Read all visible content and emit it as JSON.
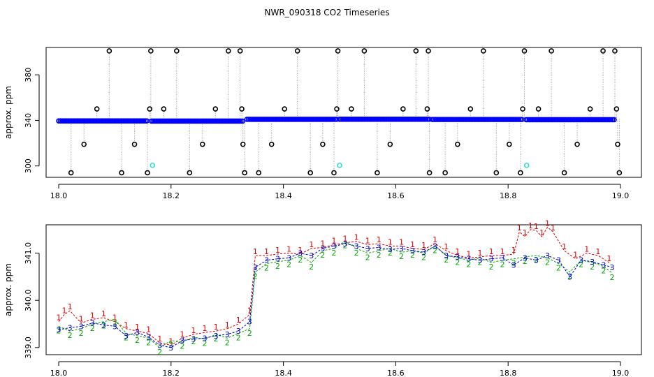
{
  "figure": {
    "title": "NWR_090318  CO2 Timeseries",
    "colors": {
      "frame": "#000000",
      "baseline_point": "#0000ff",
      "baseline_fill": "#3355dd",
      "std_point": "#000000",
      "std_alt": "#33dddd",
      "drop_line": "#9a9a9a",
      "series_1": "#dd0000",
      "series_2": "#00aa00",
      "series_3": "#0000cc"
    }
  },
  "chart_data": [
    {
      "type": "scatter",
      "title": "NWR_090318  CO2 Timeseries",
      "xlabel": "",
      "ylabel": "approx. ppm",
      "xlim": [
        18.0,
        19.0
      ],
      "ylim": [
        290,
        404
      ],
      "xticks": [
        18.0,
        18.2,
        18.4,
        18.6,
        18.8,
        19.0
      ],
      "xtick_labels": [
        "18.0",
        "18.2",
        "18.4",
        "18.6",
        "18.8",
        "19.0"
      ],
      "yticks": [
        300,
        340,
        380
      ],
      "ytick_labels": [
        "300",
        "340",
        "380"
      ],
      "grid": false,
      "series": [
        {
          "kind": "baseline",
          "segments": [
            {
              "x_start": 18.0,
              "x_end": 18.158,
              "y": 339.5
            },
            {
              "x_start": 18.165,
              "x_end": 18.328,
              "y": 339.4
            },
            {
              "x_start": 18.335,
              "x_end": 18.495,
              "y": 340.9
            },
            {
              "x_start": 18.5,
              "x_end": 18.66,
              "y": 341.0
            },
            {
              "x_start": 18.665,
              "x_end": 18.825,
              "y": 340.8
            },
            {
              "x_start": 18.832,
              "x_end": 18.99,
              "y": 340.6
            }
          ]
        },
        {
          "kind": "standards",
          "points": [
            {
              "x": 18.022,
              "y": 294
            },
            {
              "x": 18.045,
              "y": 319
            },
            {
              "x": 18.068,
              "y": 350
            },
            {
              "x": 18.09,
              "y": 401
            },
            {
              "x": 18.112,
              "y": 294
            },
            {
              "x": 18.135,
              "y": 319
            },
            {
              "x": 18.158,
              "y": 294
            },
            {
              "x": 18.162,
              "y": 350
            },
            {
              "x": 18.164,
              "y": 401
            },
            {
              "x": 18.187,
              "y": 350
            },
            {
              "x": 18.21,
              "y": 401
            },
            {
              "x": 18.233,
              "y": 294
            },
            {
              "x": 18.256,
              "y": 319
            },
            {
              "x": 18.279,
              "y": 350
            },
            {
              "x": 18.302,
              "y": 401
            },
            {
              "x": 18.323,
              "y": 401
            },
            {
              "x": 18.326,
              "y": 350
            },
            {
              "x": 18.328,
              "y": 319
            },
            {
              "x": 18.331,
              "y": 294
            },
            {
              "x": 18.356,
              "y": 294
            },
            {
              "x": 18.379,
              "y": 319
            },
            {
              "x": 18.402,
              "y": 350
            },
            {
              "x": 18.425,
              "y": 401
            },
            {
              "x": 18.448,
              "y": 294
            },
            {
              "x": 18.47,
              "y": 319
            },
            {
              "x": 18.49,
              "y": 294
            },
            {
              "x": 18.495,
              "y": 350
            },
            {
              "x": 18.497,
              "y": 401
            },
            {
              "x": 18.521,
              "y": 350
            },
            {
              "x": 18.544,
              "y": 401
            },
            {
              "x": 18.567,
              "y": 294
            },
            {
              "x": 18.59,
              "y": 319
            },
            {
              "x": 18.613,
              "y": 350
            },
            {
              "x": 18.636,
              "y": 401
            },
            {
              "x": 18.656,
              "y": 350
            },
            {
              "x": 18.658,
              "y": 401
            },
            {
              "x": 18.66,
              "y": 294
            },
            {
              "x": 18.688,
              "y": 294
            },
            {
              "x": 18.71,
              "y": 319
            },
            {
              "x": 18.733,
              "y": 350
            },
            {
              "x": 18.756,
              "y": 401
            },
            {
              "x": 18.779,
              "y": 294
            },
            {
              "x": 18.802,
              "y": 319
            },
            {
              "x": 18.822,
              "y": 294
            },
            {
              "x": 18.826,
              "y": 350
            },
            {
              "x": 18.829,
              "y": 401
            },
            {
              "x": 18.854,
              "y": 350
            },
            {
              "x": 18.877,
              "y": 401
            },
            {
              "x": 18.9,
              "y": 294
            },
            {
              "x": 18.923,
              "y": 319
            },
            {
              "x": 18.946,
              "y": 350
            },
            {
              "x": 18.969,
              "y": 401
            },
            {
              "x": 18.99,
              "y": 401
            },
            {
              "x": 18.993,
              "y": 350
            },
            {
              "x": 18.995,
              "y": 319
            },
            {
              "x": 18.998,
              "y": 294
            }
          ]
        },
        {
          "kind": "standards_alt",
          "points": [
            {
              "x": 18.167,
              "y": 300.5
            },
            {
              "x": 18.5,
              "y": 300.5
            },
            {
              "x": 18.833,
              "y": 300.5
            }
          ]
        }
      ]
    },
    {
      "type": "scatter",
      "title": "",
      "xlabel": "",
      "ylabel": "approx. ppm",
      "xlim": [
        18.0,
        19.0
      ],
      "ylim": [
        338.85,
        341.6
      ],
      "xticks": [
        18.0,
        18.2,
        18.4,
        18.6,
        18.8,
        19.0
      ],
      "xtick_labels": [
        "18.0",
        "18.2",
        "18.4",
        "18.6",
        "18.8",
        "19.0"
      ],
      "yticks": [
        339.0,
        340.0,
        341.0
      ],
      "ytick_labels": [
        "339.0",
        "340.0",
        "341.0"
      ],
      "grid": false,
      "series": [
        {
          "name": "1",
          "labels": [
            "1"
          ],
          "x": [
            18.0,
            18.01,
            18.02,
            18.04,
            18.06,
            18.08,
            18.1,
            18.12,
            18.14,
            18.16,
            18.18,
            18.2,
            18.22,
            18.24,
            18.26,
            18.28,
            18.3,
            18.32,
            18.34,
            18.35,
            18.37,
            18.39,
            18.41,
            18.43,
            18.45,
            18.47,
            18.49,
            18.51,
            18.53,
            18.55,
            18.57,
            18.59,
            18.61,
            18.63,
            18.65,
            18.67,
            18.69,
            18.71,
            18.73,
            18.75,
            18.77,
            18.79,
            18.81,
            18.82,
            18.83,
            18.84,
            18.85,
            18.86,
            18.87,
            18.88,
            18.9,
            18.92,
            18.94,
            18.96,
            18.98
          ],
          "y": [
            339.55,
            339.7,
            339.78,
            339.52,
            339.6,
            339.63,
            339.55,
            339.4,
            339.35,
            339.3,
            339.1,
            339.05,
            339.2,
            339.28,
            339.32,
            339.35,
            339.4,
            339.5,
            339.7,
            340.95,
            340.95,
            340.98,
            341.0,
            340.98,
            341.1,
            341.12,
            341.18,
            341.22,
            341.25,
            341.18,
            341.2,
            341.15,
            341.15,
            341.1,
            341.08,
            341.2,
            341.05,
            340.95,
            340.9,
            340.92,
            340.95,
            340.95,
            340.98,
            341.45,
            341.35,
            341.5,
            341.48,
            341.35,
            341.55,
            341.45,
            341.05,
            340.88,
            341.0,
            340.95,
            340.8
          ]
        },
        {
          "name": "2",
          "labels": [
            "2"
          ],
          "x": [
            18.0,
            18.02,
            18.04,
            18.06,
            18.08,
            18.1,
            18.12,
            18.14,
            18.16,
            18.18,
            18.2,
            18.22,
            18.24,
            18.26,
            18.28,
            18.3,
            18.32,
            18.34,
            18.35,
            18.37,
            18.39,
            18.41,
            18.43,
            18.45,
            18.47,
            18.49,
            18.51,
            18.53,
            18.55,
            18.57,
            18.59,
            18.61,
            18.63,
            18.65,
            18.67,
            18.69,
            18.71,
            18.73,
            18.75,
            18.77,
            18.79,
            18.81,
            18.83,
            18.85,
            18.87,
            18.89,
            18.91,
            18.93,
            18.95,
            18.97,
            18.985
          ],
          "y": [
            339.45,
            339.35,
            339.4,
            339.5,
            339.55,
            339.6,
            339.3,
            339.25,
            339.2,
            339.0,
            339.15,
            339.12,
            339.22,
            339.18,
            339.28,
            339.2,
            339.3,
            339.4,
            340.6,
            340.78,
            340.82,
            340.85,
            340.95,
            340.8,
            341.05,
            341.1,
            341.25,
            341.1,
            341.0,
            341.05,
            341.1,
            341.02,
            341.05,
            341.0,
            341.15,
            340.95,
            340.9,
            340.85,
            340.9,
            340.8,
            340.85,
            340.88,
            340.92,
            340.95,
            340.9,
            340.78,
            340.6,
            340.85,
            340.8,
            340.72,
            340.58
          ]
        },
        {
          "name": "3",
          "labels": [
            "3"
          ],
          "x": [
            18.0,
            18.02,
            18.04,
            18.06,
            18.08,
            18.1,
            18.12,
            18.14,
            18.16,
            18.18,
            18.2,
            18.22,
            18.24,
            18.26,
            18.28,
            18.3,
            18.32,
            18.34,
            18.35,
            18.37,
            18.39,
            18.41,
            18.43,
            18.45,
            18.47,
            18.49,
            18.51,
            18.53,
            18.55,
            18.57,
            18.59,
            18.61,
            18.63,
            18.65,
            18.67,
            18.69,
            18.71,
            18.73,
            18.75,
            18.77,
            18.79,
            18.81,
            18.83,
            18.85,
            18.87,
            18.89,
            18.91,
            18.93,
            18.95,
            18.97,
            18.985
          ],
          "y": [
            339.38,
            339.42,
            339.45,
            339.52,
            339.48,
            339.45,
            339.25,
            339.32,
            339.22,
            339.05,
            339.0,
            339.15,
            339.18,
            339.2,
            339.25,
            339.28,
            339.35,
            339.55,
            340.7,
            340.85,
            340.88,
            340.9,
            341.0,
            340.95,
            341.1,
            341.15,
            341.2,
            341.15,
            341.1,
            341.12,
            341.08,
            341.1,
            341.05,
            341.02,
            341.15,
            340.95,
            340.92,
            340.88,
            340.85,
            340.88,
            340.9,
            340.75,
            340.9,
            340.85,
            340.95,
            340.85,
            340.5,
            340.85,
            340.82,
            340.75,
            340.7
          ]
        }
      ]
    }
  ]
}
